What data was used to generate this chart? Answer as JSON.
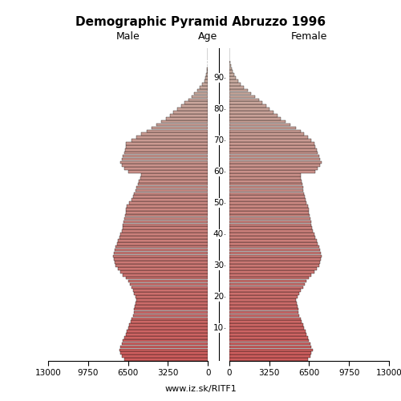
{
  "title": "Demographic Pyramid Abruzzo 1996",
  "subtitle_left": "Male",
  "subtitle_center": "Age",
  "subtitle_right": "Female",
  "footer": "www.iz.sk/RITF1",
  "xlim": 13000,
  "background_color": "#ffffff",
  "male": [
    6800,
    7000,
    7100,
    7200,
    7100,
    7000,
    6900,
    6800,
    6700,
    6600,
    6500,
    6400,
    6300,
    6200,
    6100,
    6050,
    6000,
    5950,
    5900,
    5850,
    5900,
    6000,
    6100,
    6200,
    6350,
    6500,
    6700,
    6900,
    7100,
    7300,
    7500,
    7600,
    7650,
    7700,
    7650,
    7600,
    7500,
    7400,
    7300,
    7200,
    7100,
    7000,
    6950,
    6900,
    6850,
    6800,
    6750,
    6700,
    6650,
    6600,
    6400,
    6200,
    6100,
    6000,
    5900,
    5800,
    5700,
    5600,
    5500,
    5400,
    6500,
    6800,
    7000,
    7100,
    7000,
    6900,
    6800,
    6750,
    6700,
    6650,
    6200,
    5800,
    5400,
    5000,
    4600,
    4200,
    3800,
    3400,
    3100,
    2800,
    2500,
    2200,
    1900,
    1600,
    1350,
    1100,
    850,
    650,
    450,
    300,
    200,
    130,
    80,
    50,
    30,
    18,
    10,
    5,
    3,
    1
  ],
  "female": [
    6400,
    6600,
    6700,
    6800,
    6700,
    6600,
    6500,
    6400,
    6300,
    6200,
    6100,
    6000,
    5900,
    5800,
    5700,
    5650,
    5600,
    5550,
    5500,
    5450,
    5550,
    5700,
    5850,
    6000,
    6150,
    6300,
    6500,
    6700,
    6900,
    7100,
    7300,
    7400,
    7450,
    7500,
    7450,
    7400,
    7300,
    7200,
    7100,
    7000,
    6900,
    6800,
    6750,
    6700,
    6650,
    6600,
    6550,
    6500,
    6450,
    6400,
    6300,
    6200,
    6150,
    6100,
    6050,
    6000,
    5950,
    5900,
    5850,
    5800,
    7000,
    7200,
    7400,
    7500,
    7400,
    7300,
    7200,
    7100,
    7000,
    6900,
    6700,
    6400,
    6100,
    5800,
    5400,
    5000,
    4600,
    4200,
    3900,
    3600,
    3300,
    3000,
    2700,
    2400,
    2100,
    1800,
    1500,
    1200,
    950,
    700,
    520,
    380,
    270,
    180,
    120,
    75,
    45,
    25,
    12,
    5
  ],
  "age_labels": [
    10,
    20,
    30,
    40,
    50,
    60,
    70,
    80,
    90
  ],
  "bar_height": 0.9,
  "bar_edge_color": "#000000",
  "bar_linewidth": 0.25
}
